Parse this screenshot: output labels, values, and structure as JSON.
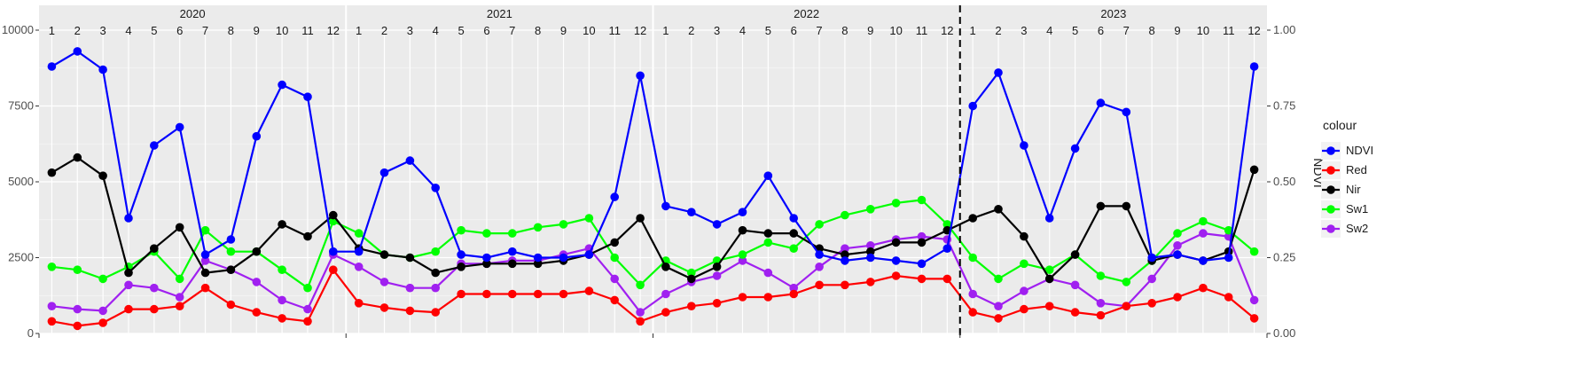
{
  "chart_data": {
    "type": "line",
    "title": "",
    "xlabel": "",
    "ylabel": "",
    "y2label": "NDVI",
    "ylim": [
      0,
      10000
    ],
    "y2lim": [
      0,
      1
    ],
    "yticks": [
      "0",
      "2500",
      "5000",
      "7500",
      "10000"
    ],
    "y2ticks": [
      "0.00",
      "0.25",
      "0.50",
      "0.75",
      "1.00"
    ],
    "facets": [
      "2020",
      "2021",
      "2022",
      "2023"
    ],
    "month_labels": [
      "1",
      "2",
      "3",
      "4",
      "5",
      "6",
      "7",
      "8",
      "9",
      "10",
      "11",
      "12"
    ],
    "x": [
      "2020-01",
      "2020-02",
      "2020-03",
      "2020-04",
      "2020-05",
      "2020-06",
      "2020-07",
      "2020-08",
      "2020-09",
      "2020-10",
      "2020-11",
      "2020-12",
      "2021-01",
      "2021-02",
      "2021-03",
      "2021-04",
      "2021-05",
      "2021-06",
      "2021-07",
      "2021-08",
      "2021-09",
      "2021-10",
      "2021-11",
      "2021-12",
      "2022-01",
      "2022-02",
      "2022-03",
      "2022-04",
      "2022-05",
      "2022-06",
      "2022-07",
      "2022-08",
      "2022-09",
      "2022-10",
      "2022-11",
      "2022-12",
      "2023-01",
      "2023-02",
      "2023-03",
      "2023-04",
      "2023-05",
      "2023-06",
      "2023-07",
      "2023-08",
      "2023-09",
      "2023-10",
      "2023-11",
      "2023-12"
    ],
    "vline_at": "2023-01",
    "legend_title": "colour",
    "legend_position": "right",
    "grid": true,
    "series": [
      {
        "name": "NDVI",
        "axis": "right",
        "color": "#0000ff",
        "values": [
          0.88,
          0.93,
          0.87,
          0.38,
          0.62,
          0.68,
          0.26,
          0.31,
          0.65,
          0.82,
          0.78,
          0.27,
          0.27,
          0.53,
          0.57,
          0.48,
          0.26,
          0.25,
          0.27,
          0.25,
          0.25,
          0.26,
          0.45,
          0.85,
          0.42,
          0.4,
          0.36,
          0.4,
          0.52,
          0.38,
          0.26,
          0.24,
          0.25,
          0.24,
          0.23,
          0.28,
          0.75,
          0.86,
          0.62,
          0.38,
          0.61,
          0.76,
          0.73,
          0.25,
          0.26,
          0.24,
          0.25,
          0.88
        ]
      },
      {
        "name": "Red",
        "axis": "left",
        "color": "#ff0000",
        "values": [
          400,
          250,
          350,
          800,
          800,
          900,
          1500,
          950,
          700,
          500,
          400,
          2100,
          1000,
          850,
          750,
          700,
          1300,
          1300,
          1300,
          1300,
          1300,
          1400,
          1100,
          400,
          700,
          900,
          1000,
          1200,
          1200,
          1300,
          1600,
          1600,
          1700,
          1900,
          1800,
          1800,
          700,
          500,
          800,
          900,
          700,
          600,
          900,
          1000,
          1200,
          1500,
          1200,
          500
        ]
      },
      {
        "name": "Nir",
        "axis": "left",
        "color": "#000000",
        "values": [
          5300,
          5800,
          5200,
          2000,
          2800,
          3500,
          2000,
          2100,
          2700,
          3600,
          3200,
          3900,
          2800,
          2600,
          2500,
          2000,
          2200,
          2300,
          2300,
          2300,
          2400,
          2600,
          3000,
          3800,
          2200,
          1800,
          2200,
          3400,
          3300,
          3300,
          2800,
          2600,
          2700,
          3000,
          3000,
          3400,
          3800,
          4100,
          3200,
          1800,
          2600,
          4200,
          4200,
          2400,
          2600,
          2400,
          2700,
          5400
        ]
      },
      {
        "name": "Sw1",
        "axis": "left",
        "color": "#00ff00",
        "values": [
          2200,
          2100,
          1800,
          2200,
          2700,
          1800,
          3400,
          2700,
          2700,
          2100,
          1500,
          3700,
          3300,
          2600,
          2500,
          2700,
          3400,
          3300,
          3300,
          3500,
          3600,
          3800,
          2500,
          1600,
          2400,
          2000,
          2400,
          2600,
          3000,
          2800,
          3600,
          3900,
          4100,
          4300,
          4400,
          3600,
          2500,
          1800,
          2300,
          2100,
          2600,
          1900,
          1700,
          2400,
          3300,
          3700,
          3400,
          2700
        ]
      },
      {
        "name": "Sw2",
        "axis": "left",
        "color": "#a020f0",
        "values": [
          900,
          800,
          750,
          1600,
          1500,
          1200,
          2400,
          2100,
          1700,
          1100,
          800,
          2600,
          2200,
          1700,
          1500,
          1500,
          2300,
          2300,
          2400,
          2400,
          2600,
          2800,
          1800,
          700,
          1300,
          1700,
          1900,
          2400,
          2000,
          1500,
          2200,
          2800,
          2900,
          3100,
          3200,
          3100,
          1300,
          900,
          1400,
          1800,
          1600,
          1000,
          900,
          1800,
          2900,
          3300,
          3200,
          1100
        ]
      }
    ]
  }
}
